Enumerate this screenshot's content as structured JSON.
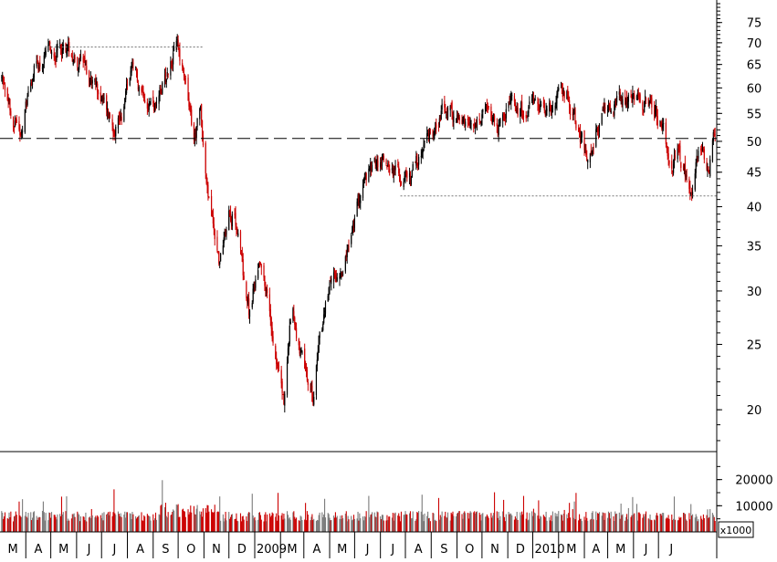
{
  "chart_data": {
    "type": "candlestick",
    "scale": "log",
    "price_axis": {
      "ticks": [
        20,
        25,
        30,
        35,
        40,
        45,
        50,
        55,
        60,
        65,
        70,
        75
      ],
      "labels": [
        "20",
        "25",
        "30",
        "35",
        "40",
        "45",
        "50",
        "55",
        "60",
        "65",
        "70",
        "75"
      ],
      "range": [
        17.5,
        80
      ]
    },
    "volume_axis": {
      "ticks": [
        10000,
        20000
      ],
      "labels": [
        "10000",
        "20000"
      ],
      "unit_label": "x1000",
      "range": [
        0,
        30000
      ]
    },
    "x_axis": {
      "labels": [
        "M",
        "A",
        "M",
        "J",
        "J",
        "A",
        "S",
        "O",
        "N",
        "D",
        "2009",
        "M",
        "A",
        "M",
        "J",
        "J",
        "A",
        "S",
        "O",
        "N",
        "D",
        "2010",
        "M",
        "A",
        "M",
        "J",
        "J"
      ],
      "start": "2008-03",
      "end": "2010-07"
    },
    "price_path": [
      [
        "2008-03-01",
        63.0
      ],
      [
        "2008-03-15",
        55.0
      ],
      [
        "2008-03-25",
        52.0
      ],
      [
        "2008-04-10",
        64.0
      ],
      [
        "2008-05-05",
        68.0
      ],
      [
        "2008-05-20",
        69.0
      ],
      [
        "2008-06-05",
        66.0
      ],
      [
        "2008-06-25",
        60.0
      ],
      [
        "2008-07-15",
        53.0
      ],
      [
        "2008-07-25",
        55.0
      ],
      [
        "2008-08-05",
        63.0
      ],
      [
        "2008-08-20",
        60.0
      ],
      [
        "2008-09-05",
        56.0
      ],
      [
        "2008-09-15",
        62.0
      ],
      [
        "2008-09-30",
        70.0
      ],
      [
        "2008-10-10",
        60.0
      ],
      [
        "2008-10-20",
        50.0
      ],
      [
        "2008-10-28",
        55.0
      ],
      [
        "2008-11-05",
        42.0
      ],
      [
        "2008-11-20",
        33.0
      ],
      [
        "2008-12-01",
        40.0
      ],
      [
        "2008-12-10",
        38.0
      ],
      [
        "2008-12-25",
        28.0
      ],
      [
        "2009-01-08",
        34.0
      ],
      [
        "2009-01-25",
        25.0
      ],
      [
        "2009-02-05",
        20.5
      ],
      [
        "2009-02-15",
        29.0
      ],
      [
        "2009-02-25",
        24.0
      ],
      [
        "2009-03-05",
        22.0
      ],
      [
        "2009-03-12",
        20.5
      ],
      [
        "2009-03-20",
        26.0
      ],
      [
        "2009-04-05",
        31.0
      ],
      [
        "2009-04-25",
        35.0
      ],
      [
        "2009-05-10",
        43.0
      ],
      [
        "2009-05-25",
        46.0
      ],
      [
        "2009-06-10",
        47.0
      ],
      [
        "2009-06-25",
        44.0
      ],
      [
        "2009-07-05",
        43.0
      ],
      [
        "2009-07-20",
        48.0
      ],
      [
        "2009-08-05",
        52.0
      ],
      [
        "2009-08-15",
        56.0
      ],
      [
        "2009-09-05",
        53.0
      ],
      [
        "2009-09-20",
        51.0
      ],
      [
        "2009-10-05",
        55.0
      ],
      [
        "2009-10-20",
        52.0
      ],
      [
        "2009-11-05",
        57.0
      ],
      [
        "2009-11-25",
        55.0
      ],
      [
        "2009-12-10",
        56.0
      ],
      [
        "2009-12-25",
        57.0
      ],
      [
        "2010-01-10",
        59.0
      ],
      [
        "2010-01-25",
        52.0
      ],
      [
        "2010-02-05",
        47.0
      ],
      [
        "2010-02-15",
        52.0
      ],
      [
        "2010-03-01",
        56.0
      ],
      [
        "2010-03-20",
        58.0
      ],
      [
        "2010-04-05",
        59.0
      ],
      [
        "2010-04-20",
        56.0
      ],
      [
        "2010-05-05",
        53.0
      ],
      [
        "2010-05-15",
        46.0
      ],
      [
        "2010-05-25",
        48.0
      ],
      [
        "2010-06-05",
        44.0
      ],
      [
        "2010-06-10",
        42.0
      ],
      [
        "2010-06-20",
        50.0
      ],
      [
        "2010-06-28",
        44.0
      ],
      [
        "2010-07-05",
        49.0
      ],
      [
        "2010-07-08",
        51.0
      ]
    ],
    "reference_lines": [
      {
        "style": "dashed",
        "value": 50.5,
        "from": "2008-03-01",
        "to": "2010-07-10"
      },
      {
        "style": "dotted",
        "value": 69.0,
        "from": "2008-05-01",
        "to": "2008-10-31"
      },
      {
        "style": "dotted",
        "value": 41.5,
        "from": "2009-06-25",
        "to": "2010-07-10"
      }
    ],
    "colors": {
      "up": "#000000",
      "down": "#cc0000",
      "volume_up": "#7a7a7a",
      "volume_down": "#cc0000"
    },
    "grid": false
  }
}
